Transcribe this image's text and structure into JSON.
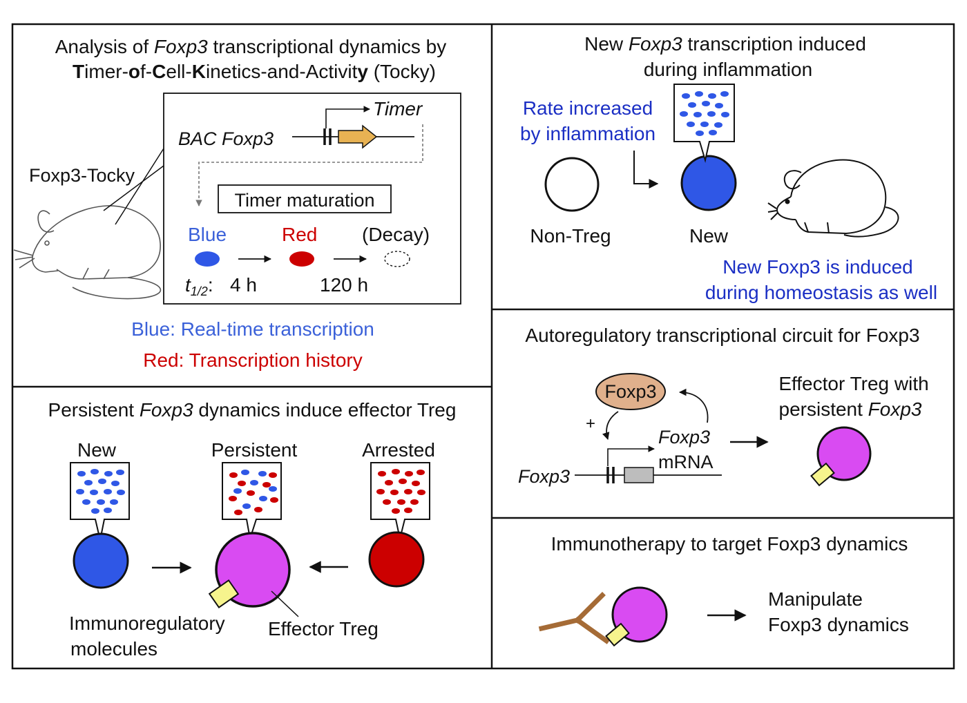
{
  "colors": {
    "blue": "#2f57e6",
    "red": "#cc0000",
    "magenta": "#d94bf2",
    "yellow": "#f6f48d",
    "orange": "#e8b253",
    "foxp3_protein": "#e0b08c",
    "brown": "#a56b36",
    "blue_text": "#1b2fc4",
    "blue_label": "#3b61d9",
    "gene_box": "#bdbdbd"
  },
  "panel_a": {
    "title_prefix": "Analysis of ",
    "title_italic": "Foxp3",
    "title_suffix": " transcriptional dynamics by",
    "subtitle": [
      "T",
      "imer-",
      "o",
      "f-",
      "C",
      "ell-",
      "K",
      "inetics-and-Activit",
      "y",
      " (Tocky)"
    ],
    "mouse_label": "Foxp3-Tocky",
    "construct_label": "BAC Foxp3",
    "timer_label": "Timer",
    "maturation_label": "Timer maturation",
    "stage_blue": "Blue",
    "stage_red": "Red",
    "stage_decay": "(Decay)",
    "halflife_symbol": "t",
    "halflife_sub": "1/2",
    "halflife_colon": ":",
    "halflife_blue": "4 h",
    "halflife_red": "120 h",
    "legend_blue": "Blue: Real-time transcription",
    "legend_red": "Red: Transcription history"
  },
  "panel_b": {
    "title_prefix": "New ",
    "title_italic": "Foxp3",
    "title_suffix": " transcription induced",
    "title_line2": "during inflammation",
    "rate_line1": "Rate increased",
    "rate_line2": "by inflammation",
    "nontreg_label": "Non-Treg",
    "new_label": "New",
    "note_line1": "New Foxp3 is induced",
    "note_line2": "during homeostasis as well"
  },
  "panel_c": {
    "title_prefix": "Persistent ",
    "title_italic": "Foxp3",
    "title_suffix": " dynamics induce effector Treg",
    "new_label": "New",
    "persistent_label": "Persistent",
    "arrested_label": "Arrested",
    "immuno_line1": "Immunoregulatory",
    "immuno_line2": "molecules",
    "effector_label": "Effector Treg"
  },
  "panel_d": {
    "title": "Autoregulatory transcriptional circuit for Foxp3",
    "protein_label": "Foxp3",
    "plus_sign": "+",
    "mrna_italic": "Foxp3",
    "mrna_label": "mRNA",
    "gene_label": "Foxp3",
    "effector_line1": "Effector Treg with",
    "effector_line2_prefix": "persistent ",
    "effector_line2_italic": "Foxp3"
  },
  "panel_e": {
    "title": "Immunotherapy to target Foxp3 dynamics",
    "result_line1": "Manipulate",
    "result_line2": "Foxp3 dynamics"
  }
}
